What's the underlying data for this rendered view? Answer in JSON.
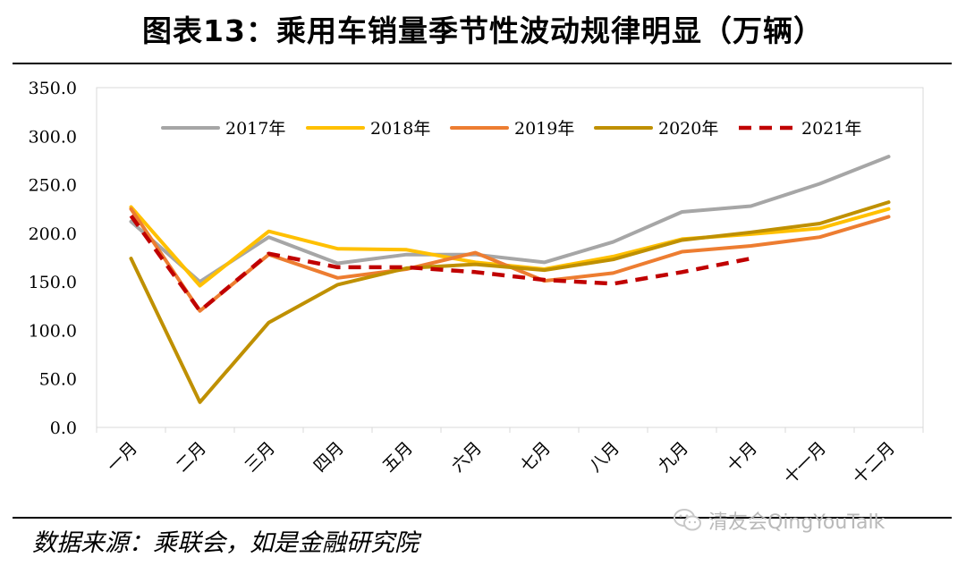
{
  "title": "图表13：乘用车销量季节性波动规律明显（万辆）",
  "source": "数据来源：乘联会，如是金融研究院",
  "watermark": "清友会QingYouTalk",
  "chart_data": {
    "type": "line",
    "categories": [
      "一月",
      "二月",
      "三月",
      "四月",
      "五月",
      "六月",
      "七月",
      "八月",
      "九月",
      "十月",
      "十一月",
      "十二月"
    ],
    "ylim": [
      0,
      350
    ],
    "yticks": [
      "0.0",
      "50.0",
      "100.0",
      "150.0",
      "200.0",
      "250.0",
      "300.0",
      "350.0"
    ],
    "grid": false,
    "legend_position": "top",
    "series": [
      {
        "name": "2017年",
        "color": "#a6a6a6",
        "dashed": false,
        "values": [
          212,
          150,
          196,
          169,
          178,
          178,
          170,
          191,
          222,
          228,
          251,
          279
        ]
      },
      {
        "name": "2018年",
        "color": "#ffc000",
        "dashed": false,
        "values": [
          227,
          146,
          202,
          184,
          183,
          170,
          163,
          176,
          194,
          199,
          205,
          225
        ]
      },
      {
        "name": "2019年",
        "color": "#ed7d31",
        "dashed": false,
        "values": [
          225,
          120,
          178,
          154,
          163,
          180,
          151,
          159,
          181,
          187,
          196,
          217
        ]
      },
      {
        "name": "2020年",
        "color": "#bf9000",
        "dashed": false,
        "values": [
          174,
          26,
          108,
          147,
          164,
          168,
          162,
          173,
          193,
          201,
          210,
          232
        ]
      },
      {
        "name": "2021年",
        "color": "#c00000",
        "dashed": true,
        "values": [
          218,
          120,
          179,
          165,
          165,
          160,
          152,
          148,
          160,
          174,
          null,
          null
        ]
      }
    ]
  }
}
